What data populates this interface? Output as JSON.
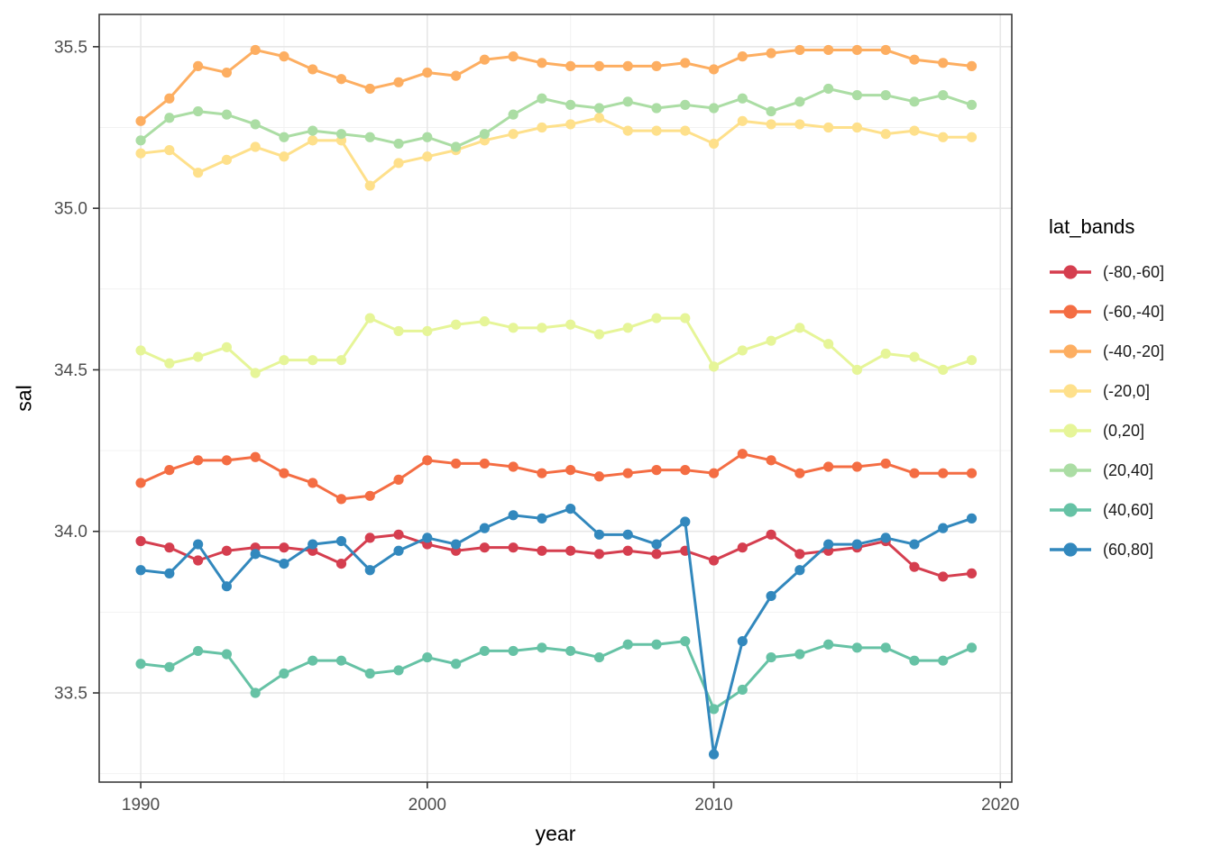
{
  "chart_data": {
    "type": "line",
    "title": "",
    "xlabel": "year",
    "ylabel": "sal",
    "legend_title": "lat_bands",
    "legend_position": "right",
    "grid": true,
    "xlim": [
      1988.55,
      2020.4
    ],
    "ylim": [
      33.224,
      35.6
    ],
    "x_ticks": [
      1990,
      2000,
      2010,
      2020
    ],
    "x_tick_labels": [
      "1990",
      "2000",
      "2010",
      "2020"
    ],
    "x_minor_ticks": [
      1995,
      2005,
      2015
    ],
    "y_ticks": [
      33.5,
      34.0,
      34.5,
      35.0,
      35.5
    ],
    "y_tick_labels": [
      "33.5",
      "34.0",
      "34.5",
      "35.0",
      "35.5"
    ],
    "y_minor_ticks": [
      33.25,
      33.75,
      34.25,
      34.75,
      35.25
    ],
    "x": [
      1990,
      1991,
      1992,
      1993,
      1994,
      1995,
      1996,
      1997,
      1998,
      1999,
      2000,
      2001,
      2002,
      2003,
      2004,
      2005,
      2006,
      2007,
      2008,
      2009,
      2010,
      2011,
      2012,
      2013,
      2014,
      2015,
      2016,
      2017,
      2018,
      2019
    ],
    "series": [
      {
        "name": "(-80,-60]",
        "color": "#D53E4F",
        "values": [
          33.97,
          33.95,
          33.91,
          33.94,
          33.95,
          33.95,
          33.94,
          33.9,
          33.98,
          33.99,
          33.96,
          33.94,
          33.95,
          33.95,
          33.94,
          33.94,
          33.93,
          33.94,
          33.93,
          33.94,
          33.91,
          33.95,
          33.99,
          33.93,
          33.94,
          33.95,
          33.97,
          33.89,
          33.86,
          33.87
        ]
      },
      {
        "name": "(-60,-40]",
        "color": "#F46D43",
        "values": [
          34.15,
          34.19,
          34.22,
          34.22,
          34.23,
          34.18,
          34.15,
          34.1,
          34.11,
          34.16,
          34.22,
          34.21,
          34.21,
          34.2,
          34.18,
          34.19,
          34.17,
          34.18,
          34.19,
          34.19,
          34.18,
          34.24,
          34.22,
          34.18,
          34.2,
          34.2,
          34.21,
          34.18,
          34.18,
          34.18
        ]
      },
      {
        "name": "(-40,-20]",
        "color": "#FDAE61",
        "values": [
          35.27,
          35.34,
          35.44,
          35.42,
          35.49,
          35.47,
          35.43,
          35.4,
          35.37,
          35.39,
          35.42,
          35.41,
          35.46,
          35.47,
          35.45,
          35.44,
          35.44,
          35.44,
          35.44,
          35.45,
          35.43,
          35.47,
          35.48,
          35.49,
          35.49,
          35.49,
          35.49,
          35.46,
          35.45,
          35.44
        ]
      },
      {
        "name": "(-20,0]",
        "color": "#FEE08B",
        "values": [
          35.17,
          35.18,
          35.11,
          35.15,
          35.19,
          35.16,
          35.21,
          35.21,
          35.07,
          35.14,
          35.16,
          35.18,
          35.21,
          35.23,
          35.25,
          35.26,
          35.28,
          35.24,
          35.24,
          35.24,
          35.2,
          35.27,
          35.26,
          35.26,
          35.25,
          35.25,
          35.23,
          35.24,
          35.22,
          35.22
        ]
      },
      {
        "name": "(0,20]",
        "color": "#E6F598",
        "values": [
          34.56,
          34.52,
          34.54,
          34.57,
          34.49,
          34.53,
          34.53,
          34.53,
          34.66,
          34.62,
          34.62,
          34.64,
          34.65,
          34.63,
          34.63,
          34.64,
          34.61,
          34.63,
          34.66,
          34.66,
          34.51,
          34.56,
          34.59,
          34.63,
          34.58,
          34.5,
          34.55,
          34.54,
          34.5,
          34.53
        ]
      },
      {
        "name": "(20,40]",
        "color": "#ABDDA4",
        "values": [
          35.21,
          35.28,
          35.3,
          35.29,
          35.26,
          35.22,
          35.24,
          35.23,
          35.22,
          35.2,
          35.22,
          35.19,
          35.23,
          35.29,
          35.34,
          35.32,
          35.31,
          35.33,
          35.31,
          35.32,
          35.31,
          35.34,
          35.3,
          35.33,
          35.37,
          35.35,
          35.35,
          35.33,
          35.35,
          35.32
        ]
      },
      {
        "name": "(40,60]",
        "color": "#66C2A5",
        "values": [
          33.59,
          33.58,
          33.63,
          33.62,
          33.5,
          33.56,
          33.6,
          33.6,
          33.56,
          33.57,
          33.61,
          33.59,
          33.63,
          33.63,
          33.64,
          33.63,
          33.61,
          33.65,
          33.65,
          33.66,
          33.45,
          33.51,
          33.61,
          33.62,
          33.65,
          33.64,
          33.64,
          33.6,
          33.6,
          33.64
        ]
      },
      {
        "name": "(60,80]",
        "color": "#3288BD",
        "values": [
          33.88,
          33.87,
          33.96,
          33.83,
          33.93,
          33.9,
          33.96,
          33.97,
          33.88,
          33.94,
          33.98,
          33.96,
          34.01,
          34.05,
          34.04,
          34.07,
          33.99,
          33.99,
          33.96,
          34.03,
          33.31,
          33.66,
          33.8,
          33.88,
          33.96,
          33.96,
          33.98,
          33.96,
          34.01,
          34.04
        ]
      }
    ],
    "style": {
      "grid_major_color": "#E7E7E7",
      "grid_minor_color": "#F2F2F2",
      "panel_border_color": "#3c3c3c",
      "tick_color": "#333333",
      "tick_label_color": "#4d4d4d"
    }
  }
}
